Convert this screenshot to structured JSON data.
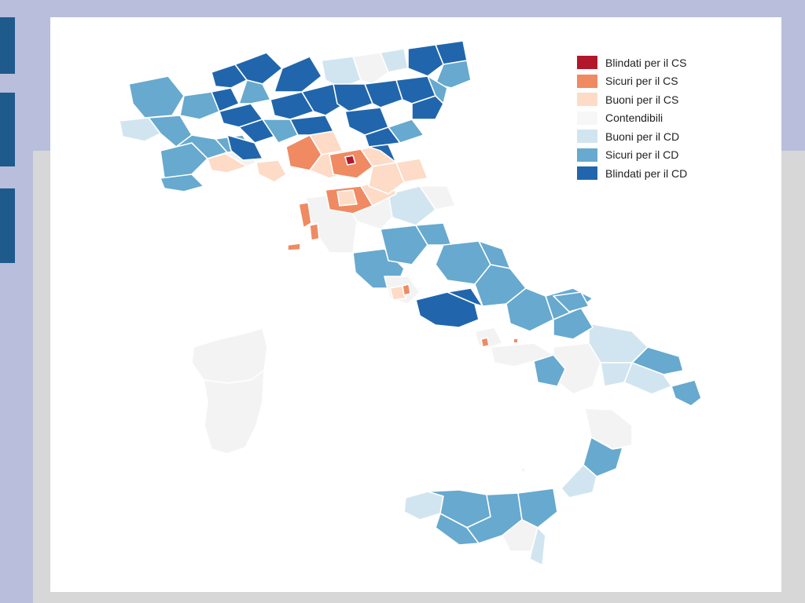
{
  "legend": {
    "items": [
      {
        "label": "Blindati per il CS",
        "color": "#b2182b"
      },
      {
        "label": "Sicuri per il CS",
        "color": "#ef8a62"
      },
      {
        "label": "Buoni per il CS",
        "color": "#fddbc7"
      },
      {
        "label": "Contendibili",
        "color": "#f7f7f7"
      },
      {
        "label": "Buoni per il CD",
        "color": "#d1e5f0"
      },
      {
        "label": "Sicuri per il CD",
        "color": "#67a9cf"
      },
      {
        "label": "Blindati per il CD",
        "color": "#2166ac"
      }
    ]
  },
  "colors": {
    "page_background": "#b9bedc",
    "lower_panel": "#d7d7d7",
    "side_bars": "#1f5a8c",
    "slide": "#ffffff"
  }
}
